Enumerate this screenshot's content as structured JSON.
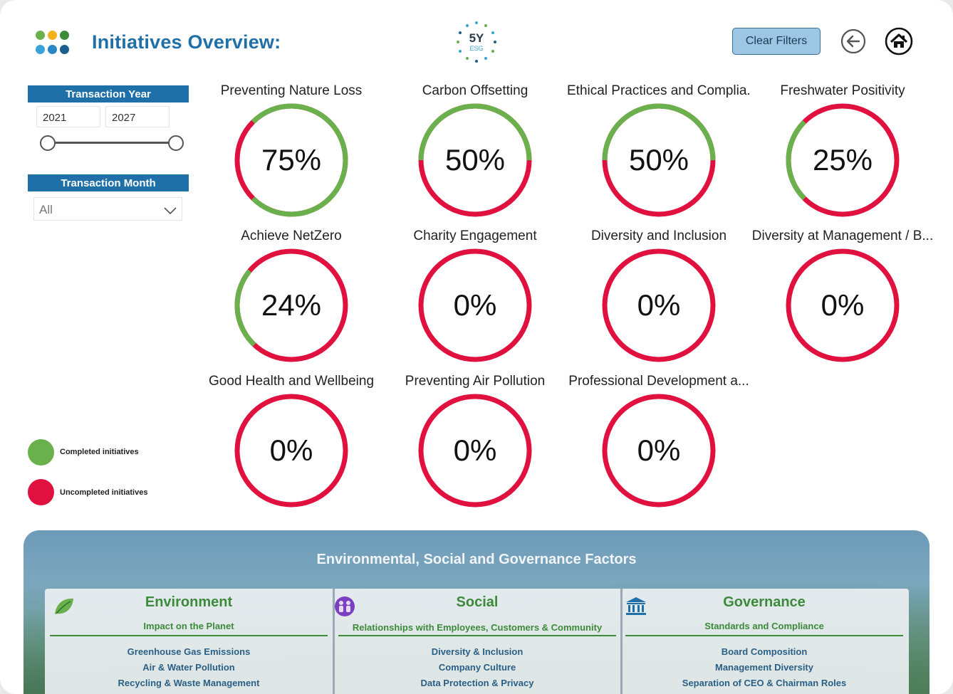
{
  "header": {
    "title": "Initiatives Overview:",
    "brand_top": "5Y",
    "brand_bottom": "ESG",
    "clear_filters_label": "Clear Filters"
  },
  "filters": {
    "year": {
      "label": "Transaction Year",
      "start": "2021",
      "end": "2027"
    },
    "month": {
      "label": "Transaction Month",
      "selected": "All"
    }
  },
  "legend": {
    "completed": "Completed initiatives",
    "uncompleted": "Uncompleted initiatives"
  },
  "colors": {
    "completed": "#6ab04c",
    "uncompleted": "#e0103f",
    "accent": "#1f6fa8"
  },
  "gauges": [
    {
      "title": "Preventing Nature Loss",
      "value": "75%",
      "completed_fraction": 0.75
    },
    {
      "title": "Carbon Offsetting",
      "value": "50%",
      "completed_fraction": 0.5
    },
    {
      "title": "Ethical Practices and Complia...",
      "value": "50%",
      "completed_fraction": 0.5
    },
    {
      "title": "Freshwater Positivity",
      "value": "25%",
      "completed_fraction": 0.25
    },
    {
      "title": "Achieve NetZero",
      "value": "24%",
      "completed_fraction": 0.24
    },
    {
      "title": "Charity Engagement",
      "value": "0%",
      "completed_fraction": 0
    },
    {
      "title": "Diversity and Inclusion",
      "value": "0%",
      "completed_fraction": 0
    },
    {
      "title": "Diversity at Management / B...",
      "value": "0%",
      "completed_fraction": 0
    },
    {
      "title": "Good Health and Wellbeing",
      "value": "0%",
      "completed_fraction": 0
    },
    {
      "title": "Preventing Air Pollution",
      "value": "0%",
      "completed_fraction": 0
    },
    {
      "title": "Professional Development a...",
      "value": "0%",
      "completed_fraction": 0
    }
  ],
  "esg": {
    "title": "Environmental, Social and Governance Factors",
    "cards": [
      {
        "title": "Environment",
        "subtitle": "Impact on the Planet",
        "icon": "leaf-icon",
        "items": [
          "Greenhouse Gas Emissions",
          "Air & Water Pollution",
          "Recycling & Waste Management"
        ]
      },
      {
        "title": "Social",
        "subtitle": "Relationships with Employees, Customers & Community",
        "icon": "people-icon",
        "items": [
          "Diversity & Inclusion",
          "Company Culture",
          "Data Protection & Privacy"
        ]
      },
      {
        "title": "Governance",
        "subtitle": "Standards and Compliance",
        "icon": "bank-icon",
        "items": [
          "Board Composition",
          "Management Diversity",
          "Separation of CEO & Chairman Roles"
        ]
      }
    ]
  }
}
